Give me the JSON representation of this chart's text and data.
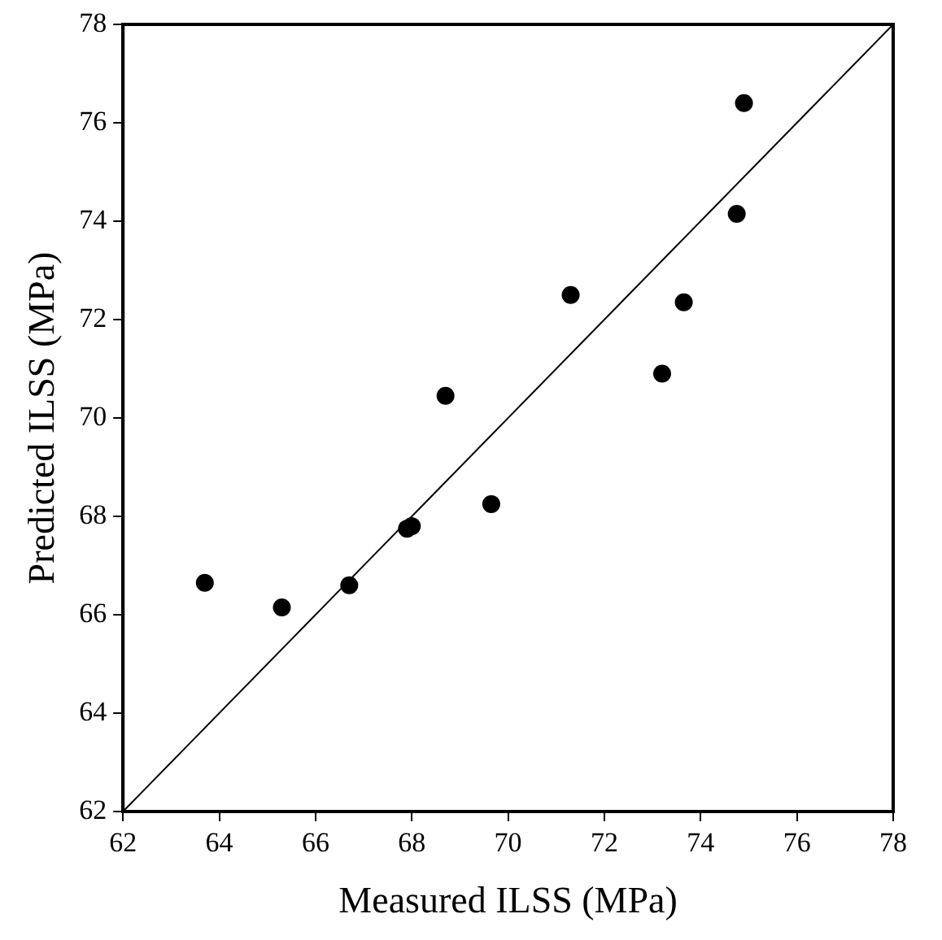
{
  "chart_data": {
    "type": "scatter",
    "xlabel": "Measured ILSS (MPa)",
    "ylabel": "Predicted ILSS (MPa)",
    "xlim": [
      62,
      78
    ],
    "xticks": [
      62,
      64,
      66,
      68,
      70,
      72,
      74,
      76,
      78
    ],
    "ylim": [
      62,
      78
    ],
    "yticks": [
      62,
      64,
      66,
      68,
      70,
      72,
      74,
      76,
      78
    ],
    "grid": false,
    "legend": false,
    "marker": "circle",
    "series": [
      {
        "color": "#000000",
        "x": [
          63.7,
          65.3,
          66.7,
          67.9,
          68.0,
          68.7,
          69.65,
          71.3,
          73.2,
          73.65,
          74.75,
          74.9
        ],
        "values": [
          66.65,
          66.15,
          66.6,
          67.75,
          67.8,
          70.45,
          68.25,
          72.5,
          70.9,
          72.35,
          74.15,
          76.4
        ]
      },
      {
        "type": "line",
        "color": "#000000",
        "x": [
          62,
          78
        ],
        "values": [
          62,
          78
        ],
        "marker": "none",
        "line_style": "solid"
      }
    ]
  }
}
